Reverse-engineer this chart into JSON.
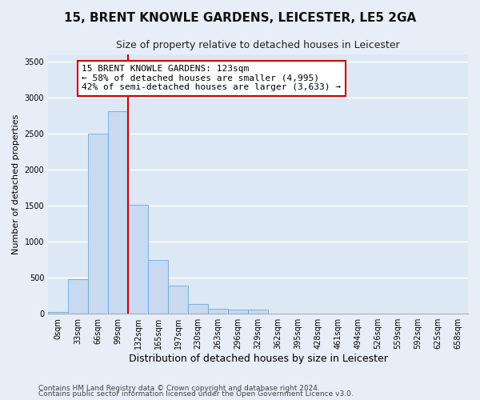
{
  "title": "15, BRENT KNOWLE GARDENS, LEICESTER, LE5 2GA",
  "subtitle": "Size of property relative to detached houses in Leicester",
  "xlabel": "Distribution of detached houses by size in Leicester",
  "ylabel": "Number of detached properties",
  "bar_color": "#c8d9f0",
  "bar_edge_color": "#5a9fd4",
  "background_color": "#dde8f5",
  "fig_background_color": "#e8eef8",
  "grid_color": "#ffffff",
  "bin_labels": [
    "0sqm",
    "33sqm",
    "66sqm",
    "99sqm",
    "132sqm",
    "165sqm",
    "197sqm",
    "230sqm",
    "263sqm",
    "296sqm",
    "329sqm",
    "362sqm",
    "395sqm",
    "428sqm",
    "461sqm",
    "494sqm",
    "526sqm",
    "559sqm",
    "592sqm",
    "625sqm",
    "658sqm"
  ],
  "bar_heights": [
    20,
    480,
    2500,
    2820,
    1510,
    750,
    390,
    140,
    70,
    55,
    55,
    0,
    0,
    0,
    0,
    0,
    0,
    0,
    0,
    0,
    0
  ],
  "ylim": [
    0,
    3600
  ],
  "yticks": [
    0,
    500,
    1000,
    1500,
    2000,
    2500,
    3000,
    3500
  ],
  "property_line_x": 4.0,
  "annotation_title": "15 BRENT KNOWLE GARDENS: 123sqm",
  "annotation_line1": "← 58% of detached houses are smaller (4,995)",
  "annotation_line2": "42% of semi-detached houses are larger (3,633) →",
  "annotation_box_color": "#ffffff",
  "annotation_box_edge": "#cc0000",
  "red_line_color": "#cc0000",
  "footer_line1": "Contains HM Land Registry data © Crown copyright and database right 2024.",
  "footer_line2": "Contains public sector information licensed under the Open Government Licence v3.0.",
  "title_fontsize": 11,
  "subtitle_fontsize": 9,
  "ylabel_fontsize": 8,
  "xlabel_fontsize": 9,
  "tick_fontsize": 7,
  "annotation_fontsize": 8,
  "footer_fontsize": 6.5
}
